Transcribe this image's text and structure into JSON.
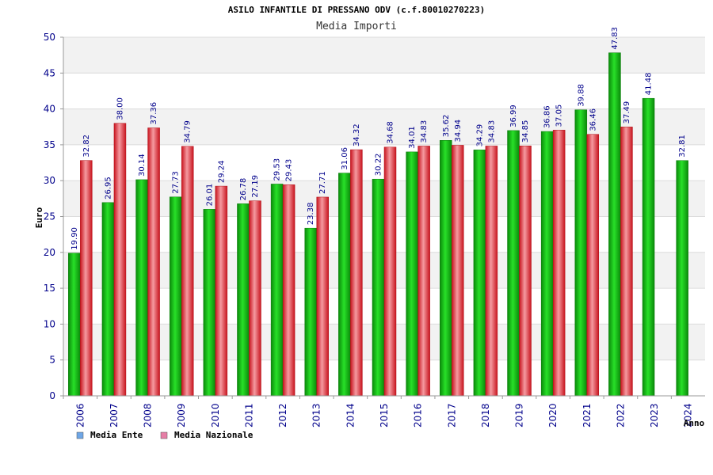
{
  "chart_data": {
    "type": "bar",
    "title": "ASILO INFANTILE DI PRESSANO ODV (c.f.80010270223)",
    "subtitle": "Media Importi",
    "xlabel": "Anno",
    "ylabel": "Euro",
    "ylim": [
      0,
      50
    ],
    "yticks": [
      0,
      5,
      10,
      15,
      20,
      25,
      30,
      35,
      40,
      45,
      50
    ],
    "categories": [
      "2006",
      "2007",
      "2008",
      "2009",
      "2010",
      "2011",
      "2012",
      "2013",
      "2014",
      "2015",
      "2016",
      "2017",
      "2018",
      "2019",
      "2020",
      "2021",
      "2022",
      "2023",
      "2024"
    ],
    "series": [
      {
        "name": "Media Ente",
        "color": "#14c814",
        "legend_color": "#6ea6e6",
        "values": [
          19.9,
          26.95,
          30.14,
          27.73,
          26.01,
          26.78,
          29.53,
          23.38,
          31.06,
          30.22,
          34.01,
          35.62,
          34.29,
          36.99,
          36.86,
          39.88,
          47.83,
          41.48,
          32.81
        ],
        "labels": [
          "19.90",
          "26.95",
          "30.14",
          "27.73",
          "26.01",
          "26.78",
          "29.53",
          "23.38",
          "31.06",
          "30.22",
          "34.01",
          "35.62",
          "34.29",
          "36.99",
          "36.86",
          "39.88",
          "47.83",
          "41.48",
          "32.81"
        ]
      },
      {
        "name": "Media Nazionale",
        "color": "#e8323c",
        "legend_color": "#e67ea6",
        "values": [
          32.82,
          38.0,
          37.36,
          34.79,
          29.24,
          27.19,
          29.43,
          27.71,
          34.32,
          34.68,
          34.83,
          34.94,
          34.83,
          34.85,
          37.05,
          36.46,
          37.49,
          null,
          null
        ],
        "labels": [
          "32.82",
          "38.00",
          "37.36",
          "34.79",
          "29.24",
          "27.19",
          "29.43",
          "27.71",
          "34.32",
          "34.68",
          "34.83",
          "34.94",
          "34.83",
          "34.85",
          "37.05",
          "36.46",
          "37.49",
          null,
          null
        ]
      }
    ],
    "grid": true,
    "legend_position": "bottom-left"
  }
}
